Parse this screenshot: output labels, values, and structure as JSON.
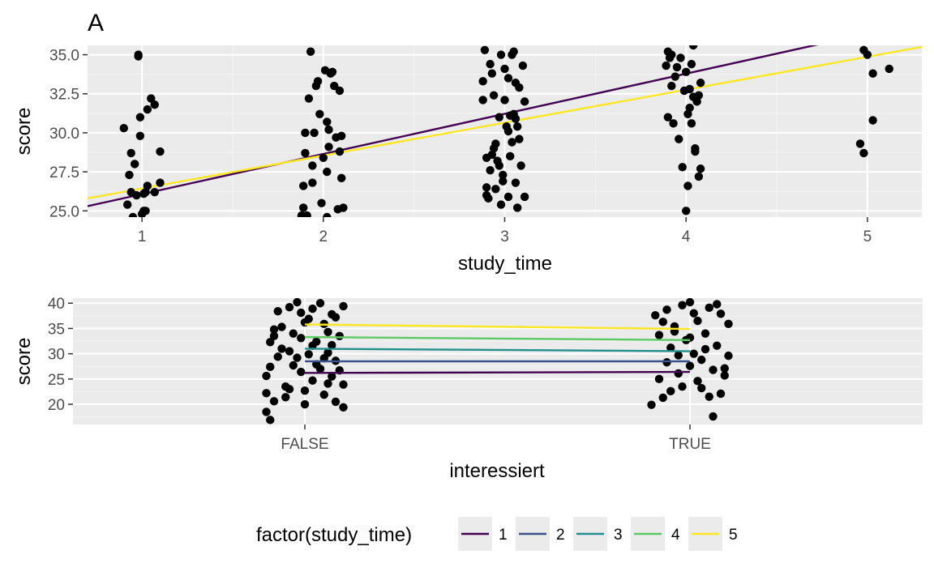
{
  "chart_data": [
    {
      "panel_tag": "A",
      "type": "scatter",
      "xlabel": "study_time",
      "ylabel": "score",
      "x_ticks": [
        "1",
        "2",
        "3",
        "4",
        "5"
      ],
      "y_ticks": [
        "25.0",
        "27.5",
        "30.0",
        "32.5",
        "35.0"
      ],
      "xlim": [
        0.7,
        5.3
      ],
      "ylim": [
        24.6,
        35.6
      ],
      "grid": true,
      "points": [
        [
          0.9,
          30.3
        ],
        [
          0.92,
          25.4
        ],
        [
          0.93,
          27.3
        ],
        [
          0.94,
          28.7
        ],
        [
          0.94,
          26.2
        ],
        [
          0.95,
          24.6
        ],
        [
          0.97,
          26.0
        ],
        [
          0.98,
          34.9
        ],
        [
          0.98,
          35.0
        ],
        [
          0.99,
          31.0
        ],
        [
          1.0,
          24.8
        ],
        [
          0.99,
          29.8
        ],
        [
          1.01,
          26.1
        ],
        [
          1.02,
          26.2
        ],
        [
          1.03,
          26.6
        ],
        [
          1.03,
          31.5
        ],
        [
          1.01,
          25.0
        ],
        [
          1.02,
          25.0
        ],
        [
          1.05,
          32.2
        ],
        [
          1.07,
          31.8
        ],
        [
          1.07,
          26.2
        ],
        [
          1.1,
          28.8
        ],
        [
          1.1,
          26.8
        ],
        [
          0.96,
          28.0
        ],
        [
          1.88,
          24.7
        ],
        [
          1.91,
          24.7
        ],
        [
          1.89,
          25.2
        ],
        [
          1.9,
          28.7
        ],
        [
          1.9,
          30.0
        ],
        [
          1.92,
          32.2
        ],
        [
          1.94,
          27.9
        ],
        [
          1.94,
          26.8
        ],
        [
          1.96,
          33.0
        ],
        [
          1.97,
          33.3
        ],
        [
          1.98,
          31.2
        ],
        [
          1.99,
          25.5
        ],
        [
          2.01,
          34.0
        ],
        [
          2.02,
          30.7
        ],
        [
          2.02,
          27.5
        ],
        [
          2.02,
          24.6
        ],
        [
          2.03,
          29.1
        ],
        [
          2.04,
          33.8
        ],
        [
          2.05,
          33.9
        ],
        [
          2.06,
          33.0
        ],
        [
          2.07,
          29.7
        ],
        [
          2.08,
          25.1
        ],
        [
          2.09,
          32.7
        ],
        [
          2.09,
          28.8
        ],
        [
          2.1,
          29.8
        ],
        [
          2.1,
          27.1
        ],
        [
          2.11,
          25.2
        ],
        [
          1.93,
          35.2
        ],
        [
          1.89,
          26.6
        ],
        [
          1.95,
          30.0
        ],
        [
          2.0,
          28.4
        ],
        [
          2.03,
          30.2
        ],
        [
          2.89,
          35.3
        ],
        [
          2.88,
          33.3
        ],
        [
          2.88,
          32.1
        ],
        [
          2.9,
          28.4
        ],
        [
          2.9,
          26.5
        ],
        [
          2.9,
          26.0
        ],
        [
          2.91,
          25.8
        ],
        [
          2.92,
          34.4
        ],
        [
          2.92,
          27.6
        ],
        [
          2.93,
          33.8
        ],
        [
          2.94,
          32.4
        ],
        [
          2.95,
          29.3
        ],
        [
          2.96,
          28.2
        ],
        [
          2.97,
          31.0
        ],
        [
          2.98,
          25.4
        ],
        [
          2.99,
          27.3
        ],
        [
          2.99,
          26.9
        ],
        [
          3.0,
          32.1
        ],
        [
          3.01,
          30.4
        ],
        [
          3.02,
          25.9
        ],
        [
          3.03,
          31.1
        ],
        [
          3.03,
          28.5
        ],
        [
          3.04,
          35.0
        ],
        [
          3.05,
          35.2
        ],
        [
          3.06,
          33.2
        ],
        [
          3.07,
          30.4
        ],
        [
          3.08,
          32.9
        ],
        [
          3.08,
          29.6
        ],
        [
          3.09,
          27.9
        ],
        [
          3.1,
          34.3
        ],
        [
          3.11,
          25.9
        ],
        [
          3.11,
          32.0
        ],
        [
          2.93,
          28.6
        ],
        [
          2.94,
          29.0
        ],
        [
          2.95,
          26.4
        ],
        [
          2.97,
          27.9
        ],
        [
          3.02,
          30.1
        ],
        [
          3.04,
          29.4
        ],
        [
          3.06,
          26.8
        ],
        [
          3.07,
          25.2
        ],
        [
          3.0,
          34.1
        ],
        [
          3.02,
          33.5
        ],
        [
          2.98,
          35.0
        ],
        [
          3.06,
          30.9
        ],
        [
          3.05,
          31.2
        ],
        [
          3.89,
          34.3
        ],
        [
          3.9,
          35.2
        ],
        [
          3.91,
          34.8
        ],
        [
          3.9,
          31.0
        ],
        [
          3.92,
          33.0
        ],
        [
          3.93,
          30.6
        ],
        [
          3.95,
          34.2
        ],
        [
          3.96,
          29.6
        ],
        [
          3.97,
          34.8
        ],
        [
          3.98,
          27.8
        ],
        [
          3.99,
          32.7
        ],
        [
          4.0,
          25.0
        ],
        [
          4.0,
          33.9
        ],
        [
          4.01,
          26.6
        ],
        [
          4.02,
          32.8
        ],
        [
          4.03,
          30.6
        ],
        [
          4.04,
          32.3
        ],
        [
          4.05,
          28.8
        ],
        [
          4.06,
          32.0
        ],
        [
          4.07,
          32.4
        ],
        [
          4.07,
          27.2
        ],
        [
          4.08,
          33.2
        ],
        [
          4.08,
          27.7
        ],
        [
          4.04,
          35.6
        ],
        [
          4.03,
          34.4
        ],
        [
          4.02,
          31.6
        ],
        [
          4.05,
          29.0
        ],
        [
          3.94,
          33.6
        ],
        [
          3.92,
          35.0
        ],
        [
          4.01,
          31.2
        ],
        [
          4.96,
          29.3
        ],
        [
          4.98,
          28.7
        ],
        [
          4.98,
          35.3
        ],
        [
          5.0,
          35.0
        ],
        [
          5.03,
          33.8
        ],
        [
          5.03,
          30.8
        ],
        [
          5.12,
          34.1
        ]
      ],
      "lines": [
        {
          "color": "#440154",
          "x": [
            0.7,
            4.9
          ],
          "y": [
            25.3,
            36.1
          ]
        },
        {
          "color": "#fde725",
          "x": [
            0.7,
            5.3
          ],
          "y": [
            25.8,
            35.5
          ]
        }
      ]
    },
    {
      "type": "scatter",
      "xlabel": "interessiert",
      "ylabel": "score",
      "categories": [
        "FALSE",
        "TRUE"
      ],
      "y_ticks": [
        "20",
        "25",
        "30",
        "35",
        "40"
      ],
      "ylim": [
        16,
        41
      ],
      "grid": true,
      "points": [
        [
          -0.1,
          18.5
        ],
        [
          -0.09,
          16.9
        ],
        [
          -0.08,
          20.6
        ],
        [
          -0.1,
          22.2
        ],
        [
          -0.07,
          29.4
        ],
        [
          -0.1,
          25.6
        ],
        [
          -0.09,
          32.3
        ],
        [
          -0.08,
          34.8
        ],
        [
          -0.06,
          35.3
        ],
        [
          -0.07,
          38.4
        ],
        [
          -0.05,
          23.5
        ],
        [
          -0.05,
          21.4
        ],
        [
          -0.04,
          30.5
        ],
        [
          -0.04,
          39.2
        ],
        [
          -0.03,
          27.7
        ],
        [
          -0.02,
          40.2
        ],
        [
          -0.01,
          33.1
        ],
        [
          -0.01,
          26.4
        ],
        [
          0.0,
          22.7
        ],
        [
          0.0,
          36.2
        ],
        [
          0.01,
          29.9
        ],
        [
          0.02,
          24.7
        ],
        [
          0.02,
          38.9
        ],
        [
          0.03,
          32.4
        ],
        [
          0.04,
          27.0
        ],
        [
          0.04,
          40.0
        ],
        [
          0.05,
          21.9
        ],
        [
          0.06,
          34.3
        ],
        [
          0.06,
          30.2
        ],
        [
          0.07,
          25.5
        ],
        [
          0.07,
          37.8
        ],
        [
          0.08,
          28.6
        ],
        [
          0.08,
          20.5
        ],
        [
          0.09,
          33.5
        ],
        [
          0.1,
          23.9
        ],
        [
          0.1,
          39.4
        ],
        [
          0.09,
          26.7
        ],
        [
          0.1,
          19.4
        ],
        [
          0.07,
          31.7
        ],
        [
          0.05,
          35.9
        ],
        [
          -0.06,
          31.0
        ],
        [
          -0.03,
          34.0
        ],
        [
          -0.02,
          29.2
        ],
        [
          0.01,
          36.9
        ],
        [
          0.03,
          27.9
        ],
        [
          0.06,
          24.1
        ],
        [
          0.08,
          37.2
        ],
        [
          -0.08,
          33.5
        ],
        [
          -0.04,
          23.0
        ],
        [
          0.0,
          20.0
        ],
        [
          0.05,
          29.1
        ],
        [
          0.02,
          31.6
        ],
        [
          -0.09,
          27.4
        ],
        [
          -0.01,
          38.1
        ],
        [
          0.9,
          19.9
        ],
        [
          0.91,
          37.6
        ],
        [
          0.92,
          25.0
        ],
        [
          0.92,
          33.7
        ],
        [
          0.93,
          21.3
        ],
        [
          0.94,
          38.7
        ],
        [
          0.94,
          28.3
        ],
        [
          0.95,
          22.6
        ],
        [
          0.95,
          31.2
        ],
        [
          0.96,
          35.4
        ],
        [
          0.97,
          26.1
        ],
        [
          0.98,
          39.6
        ],
        [
          0.98,
          23.5
        ],
        [
          0.99,
          32.7
        ],
        [
          1.0,
          27.6
        ],
        [
          1.0,
          40.2
        ],
        [
          1.01,
          30.0
        ],
        [
          1.02,
          24.6
        ],
        [
          1.02,
          36.5
        ],
        [
          1.03,
          28.8
        ],
        [
          1.04,
          34.0
        ],
        [
          1.05,
          39.1
        ],
        [
          1.05,
          21.5
        ],
        [
          1.06,
          26.8
        ],
        [
          1.07,
          31.6
        ],
        [
          1.08,
          37.9
        ],
        [
          1.08,
          22.1
        ],
        [
          1.09,
          25.7
        ],
        [
          1.1,
          35.9
        ],
        [
          1.1,
          29.6
        ],
        [
          1.06,
          17.6
        ],
        [
          1.03,
          23.2
        ],
        [
          1.0,
          33.2
        ],
        [
          0.97,
          29.7
        ],
        [
          0.96,
          34.4
        ],
        [
          1.09,
          27.1
        ],
        [
          1.07,
          39.8
        ],
        [
          0.93,
          36.3
        ],
        [
          1.04,
          30.9
        ],
        [
          1.01,
          38.0
        ]
      ],
      "lines": [
        {
          "color": "#440154",
          "x": [
            0,
            1
          ],
          "y": [
            26.2,
            26.4
          ]
        },
        {
          "color": "#3b528b",
          "x": [
            0,
            1
          ],
          "y": [
            28.5,
            28.5
          ]
        },
        {
          "color": "#21908d",
          "x": [
            0,
            1
          ],
          "y": [
            31.0,
            30.5
          ]
        },
        {
          "color": "#5dc963",
          "x": [
            0,
            1
          ],
          "y": [
            33.3,
            32.7
          ]
        },
        {
          "color": "#fde725",
          "x": [
            0,
            1
          ],
          "y": [
            35.8,
            34.9
          ]
        }
      ]
    }
  ],
  "legend": {
    "title": "factor(study_time)",
    "position": "bottom",
    "items": [
      {
        "label": "1",
        "color": "#440154"
      },
      {
        "label": "2",
        "color": "#3b528b"
      },
      {
        "label": "3",
        "color": "#21908d"
      },
      {
        "label": "4",
        "color": "#5dc963"
      },
      {
        "label": "5",
        "color": "#fde725"
      }
    ]
  }
}
